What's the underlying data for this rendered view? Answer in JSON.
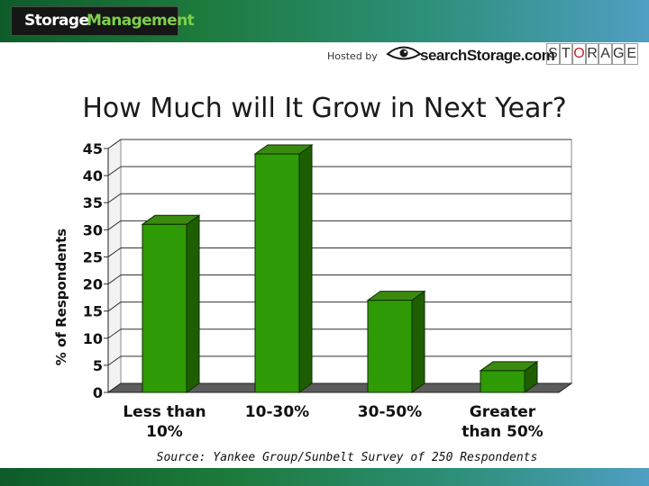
{
  "header": {
    "logo_word1": "Storage",
    "logo_word2": "Management",
    "hosted_by": "Hosted by",
    "host_name": "searchStorage.com",
    "storage_letters": [
      "S",
      "T",
      "O",
      "R",
      "A",
      "G",
      "E"
    ]
  },
  "slide": {
    "title": "How Much will It Grow in Next Year?",
    "source": "Source: Yankee Group/Sunbelt Survey of 250 Respondents"
  },
  "colors": {
    "bar_front": "#2e9a06",
    "bar_side": "#1d5f00",
    "bar_top": "#3a8a10",
    "floor": "#5c5c5c",
    "header_start": "#0d5c2a",
    "header_end": "#4f9fc2",
    "storage_accent": "#c0282b"
  },
  "chart_data": {
    "type": "bar",
    "categories": [
      [
        "Less than",
        "10%"
      ],
      [
        "10-30%"
      ],
      [
        "30-50%"
      ],
      [
        "Greater",
        "than 50%"
      ]
    ],
    "values": [
      31,
      44,
      17,
      4
    ],
    "ylabel": "% of Respondents",
    "xlabel": "",
    "ylim": [
      0,
      45
    ],
    "yticks": [
      0,
      5,
      10,
      15,
      20,
      25,
      30,
      35,
      40,
      45
    ],
    "grid": true,
    "style": "3d"
  }
}
